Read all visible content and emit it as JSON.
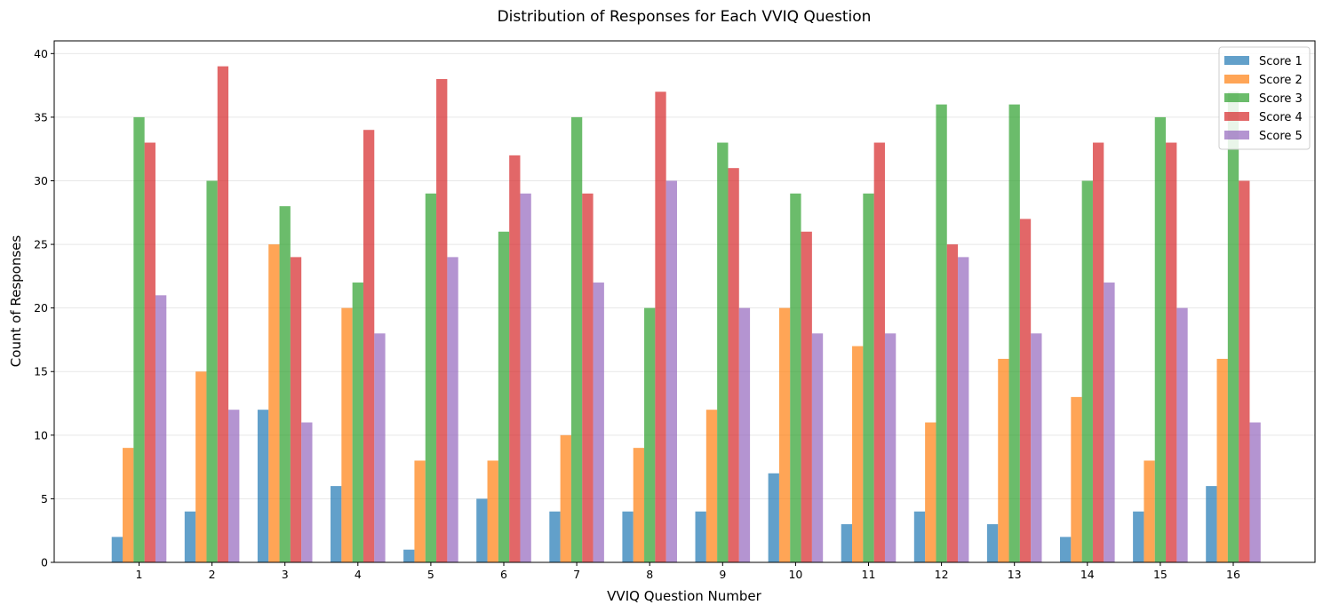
{
  "chart_data": {
    "type": "bar",
    "title": "Distribution of Responses for Each VVIQ Question",
    "xlabel": "VVIQ Question Number",
    "ylabel": "Count of Responses",
    "categories": [
      "1",
      "2",
      "3",
      "4",
      "5",
      "6",
      "7",
      "8",
      "9",
      "10",
      "11",
      "12",
      "13",
      "14",
      "15",
      "16"
    ],
    "ylim": [
      0,
      41
    ],
    "yticks": [
      0,
      5,
      10,
      15,
      20,
      25,
      30,
      35,
      40
    ],
    "grid": "y",
    "legend_position": "top-right",
    "series": [
      {
        "name": "Score 1",
        "color": "#1f77b4",
        "values": [
          2,
          4,
          12,
          6,
          1,
          5,
          4,
          4,
          4,
          7,
          3,
          4,
          3,
          2,
          4,
          6
        ]
      },
      {
        "name": "Score 2",
        "color": "#ff7f0e",
        "values": [
          9,
          15,
          25,
          20,
          8,
          8,
          10,
          9,
          12,
          20,
          17,
          11,
          16,
          13,
          8,
          16
        ]
      },
      {
        "name": "Score 3",
        "color": "#2ca02c",
        "values": [
          35,
          30,
          28,
          22,
          29,
          26,
          35,
          20,
          33,
          29,
          29,
          36,
          36,
          30,
          35,
          37
        ]
      },
      {
        "name": "Score 4",
        "color": "#d62728",
        "values": [
          33,
          39,
          24,
          34,
          38,
          32,
          29,
          37,
          31,
          26,
          33,
          25,
          27,
          33,
          33,
          30
        ]
      },
      {
        "name": "Score 5",
        "color": "#9467bd",
        "values": [
          21,
          12,
          11,
          18,
          24,
          29,
          22,
          30,
          20,
          18,
          18,
          24,
          18,
          22,
          20,
          11
        ]
      }
    ]
  }
}
